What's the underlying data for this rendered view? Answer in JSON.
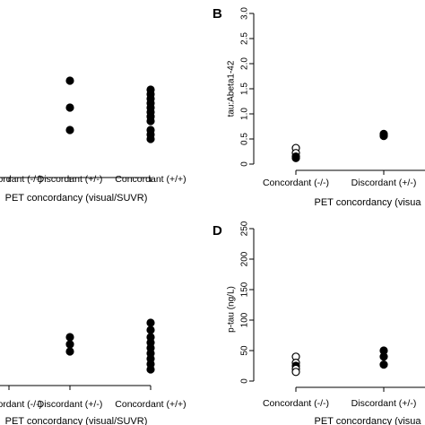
{
  "chart_data": [
    {
      "panel": "",
      "type": "scatter",
      "categories": [
        "Concordant (-/-)",
        "Discordant (+/-)",
        "Concordant (+/+)"
      ],
      "xlabel": "PET concordancy (visual/SUVR)",
      "ylabel": "",
      "points": [
        {
          "cat": 1,
          "value": 1.6,
          "filled": true
        },
        {
          "cat": 1,
          "value": 1.3,
          "filled": true
        },
        {
          "cat": 1,
          "value": 1.05,
          "filled": true
        },
        {
          "cat": 2,
          "value": 1.5,
          "filled": true
        },
        {
          "cat": 2,
          "value": 1.45,
          "filled": true
        },
        {
          "cat": 2,
          "value": 1.4,
          "filled": true
        },
        {
          "cat": 2,
          "value": 1.35,
          "filled": true
        },
        {
          "cat": 2,
          "value": 1.3,
          "filled": true
        },
        {
          "cat": 2,
          "value": 1.25,
          "filled": true
        },
        {
          "cat": 2,
          "value": 1.2,
          "filled": true
        },
        {
          "cat": 2,
          "value": 1.15,
          "filled": true
        },
        {
          "cat": 2,
          "value": 1.05,
          "filled": true
        },
        {
          "cat": 2,
          "value": 1.0,
          "filled": true
        },
        {
          "cat": 2,
          "value": 0.95,
          "filled": true
        }
      ]
    },
    {
      "panel": "B",
      "type": "scatter",
      "categories": [
        "Concordant (-/-)",
        "Discordant (+/-)",
        ""
      ],
      "xlabel": "PET concordancy (visua",
      "ylabel": "tau:Abeta1-42",
      "ylim": [
        0,
        3.0
      ],
      "yticks": [
        "0",
        "0.5",
        "1.0",
        "1.5",
        "2.0",
        "2.5",
        "3.0"
      ],
      "points": [
        {
          "cat": 0,
          "value": 0.32,
          "filled": false
        },
        {
          "cat": 0,
          "value": 0.22,
          "filled": false
        },
        {
          "cat": 0,
          "value": 0.15,
          "filled": true
        },
        {
          "cat": 0,
          "value": 0.12,
          "filled": true
        },
        {
          "cat": 1,
          "value": 0.6,
          "filled": true
        },
        {
          "cat": 1,
          "value": 0.56,
          "filled": true
        }
      ]
    },
    {
      "panel": "",
      "type": "scatter",
      "categories": [
        "Concordant (-/-)",
        "Discordant (+/-)",
        "Concordant (+/+)"
      ],
      "xlabel": "PET concordancy (visual/SUVR)",
      "ylabel": "",
      "points": [
        {
          "cat": 1,
          "value": 0.64,
          "filled": true
        },
        {
          "cat": 1,
          "value": 0.56,
          "filled": true
        },
        {
          "cat": 1,
          "value": 0.48,
          "filled": true
        },
        {
          "cat": 2,
          "value": 0.8,
          "filled": true
        },
        {
          "cat": 2,
          "value": 0.72,
          "filled": true
        },
        {
          "cat": 2,
          "value": 0.64,
          "filled": true
        },
        {
          "cat": 2,
          "value": 0.58,
          "filled": true
        },
        {
          "cat": 2,
          "value": 0.52,
          "filled": true
        },
        {
          "cat": 2,
          "value": 0.46,
          "filled": true
        },
        {
          "cat": 2,
          "value": 0.4,
          "filled": true
        },
        {
          "cat": 2,
          "value": 0.34,
          "filled": true
        },
        {
          "cat": 2,
          "value": 0.28,
          "filled": true
        }
      ]
    },
    {
      "panel": "D",
      "type": "scatter",
      "categories": [
        "Concordant (-/-)",
        "Discordant (+/-)",
        ""
      ],
      "xlabel": "PET concordancy (visua",
      "ylabel": "p-tau (ng/L)",
      "ylim": [
        0,
        250
      ],
      "yticks": [
        "0",
        "50",
        "100",
        "150",
        "200",
        "250"
      ],
      "points": [
        {
          "cat": 0,
          "value": 40,
          "filled": false
        },
        {
          "cat": 0,
          "value": 30,
          "filled": false
        },
        {
          "cat": 0,
          "value": 25,
          "filled": true
        },
        {
          "cat": 0,
          "value": 20,
          "filled": false
        },
        {
          "cat": 0,
          "value": 15,
          "filled": false
        },
        {
          "cat": 1,
          "value": 50,
          "filled": true
        },
        {
          "cat": 1,
          "value": 40,
          "filled": true
        },
        {
          "cat": 1,
          "value": 27,
          "filled": true
        }
      ]
    }
  ]
}
